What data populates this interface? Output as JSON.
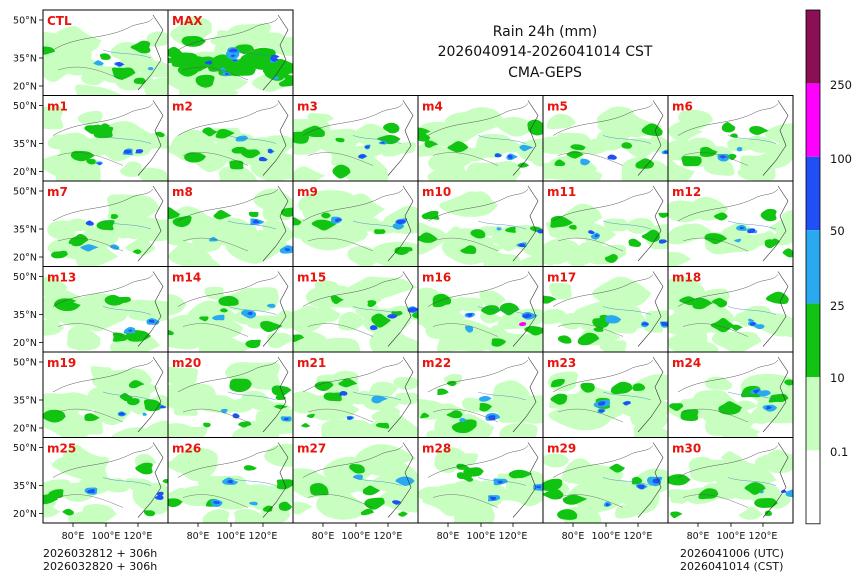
{
  "header": {
    "title_line1": "Rain 24h (mm)",
    "title_line2": "2026040914-2026041014 CST",
    "title_line3": "CMA-GEPS"
  },
  "panels": [
    "CTL",
    "MAX",
    "m1",
    "m2",
    "m3",
    "m4",
    "m5",
    "m6",
    "m7",
    "m8",
    "m9",
    "m10",
    "m11",
    "m12",
    "m13",
    "m14",
    "m15",
    "m16",
    "m17",
    "m18",
    "m19",
    "m20",
    "m21",
    "m22",
    "m23",
    "m24",
    "m25",
    "m26",
    "m27",
    "m28",
    "m29",
    "m30"
  ],
  "axes": {
    "lat_ticks": [
      "50°N",
      "35°N",
      "20°N"
    ],
    "lon_ticks": [
      "80°E",
      "100°E",
      "120°E"
    ]
  },
  "colorbar": {
    "labels": [
      "0.1",
      "10",
      "25",
      "50",
      "100",
      "250"
    ],
    "colors": [
      "#ffffff",
      "#c8ffc0",
      "#11c411",
      "#29aaf0",
      "#1f4ff5",
      "#ff00ff",
      "#8b0f55"
    ]
  },
  "footer": {
    "left_line1": "2026032812 + 306h",
    "left_line2": "2026032820 + 306h",
    "right_line1": "2026041006 (UTC)",
    "right_line2": "2026041014 (CST)"
  }
}
